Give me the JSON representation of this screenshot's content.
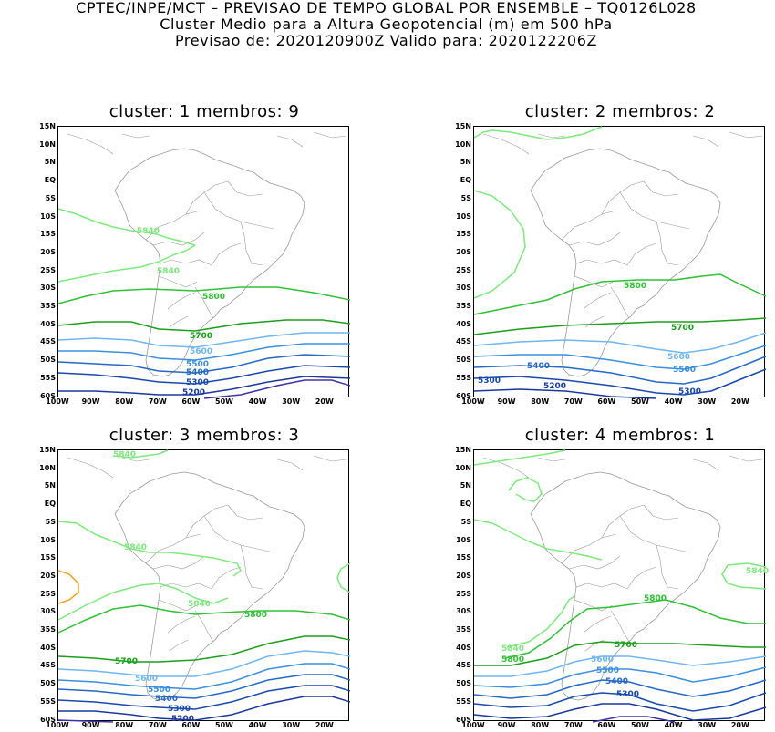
{
  "header": {
    "line1": "CPTEC/INPE/MCT – PREVISAO DE TEMPO GLOBAL POR ENSEMBLE – TQ0126L028",
    "line2": "Cluster Medio para a Altura Geopotencial (m) em 500 hPa",
    "line3": "Previsao de: 2020120900Z    Valido para: 2020122206Z"
  },
  "axes": {
    "lat_labels": [
      "15N",
      "10N",
      "5N",
      "EQ",
      "5S",
      "10S",
      "15S",
      "20S",
      "25S",
      "30S",
      "35S",
      "40S",
      "45S",
      "50S",
      "55S",
      "60S"
    ],
    "lon_labels": [
      "100W",
      "90W",
      "80W",
      "70W",
      "60W",
      "50W",
      "40W",
      "30W",
      "20W"
    ]
  },
  "colors": {
    "c5840": "#7dea7d",
    "c5800": "#2ec234",
    "c5700": "#1aa01a",
    "c5600": "#6fb6f2",
    "c5500": "#3a8fe0",
    "c5400": "#2468c8",
    "c5300": "#1848b0",
    "c5200": "#1838a0",
    "c5100": "#4030a8",
    "c5880": "#f7a21b",
    "coast": "#9a9a9a"
  },
  "panels": [
    {
      "title": "cluster: 1   membros: 9",
      "contour_labels": [
        "5840",
        "5840",
        "5800",
        "5700",
        "5600",
        "5500",
        "5400",
        "5300",
        "5200"
      ]
    },
    {
      "title": "cluster: 2   membros: 2",
      "contour_labels": [
        "5800",
        "5700",
        "5600",
        "5500",
        "5400",
        "5300",
        "5300",
        "5200"
      ]
    },
    {
      "title": "cluster: 3   membros: 3",
      "contour_labels": [
        "5840",
        "5840",
        "5840",
        "5800",
        "5700",
        "5600",
        "5500",
        "5400",
        "5300",
        "5200"
      ]
    },
    {
      "title": "cluster: 4   membros: 1",
      "contour_labels": [
        "5840",
        "5840",
        "5800",
        "5800",
        "5700",
        "5600",
        "5500",
        "5400",
        "5300"
      ]
    }
  ]
}
